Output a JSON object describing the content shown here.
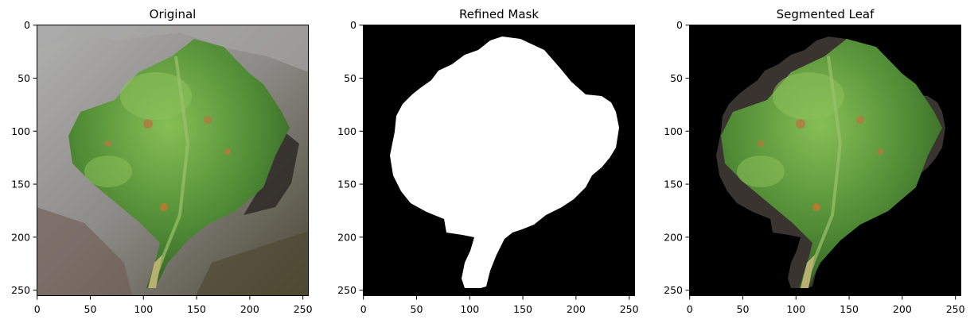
{
  "figure": {
    "panels": [
      {
        "title": "Original"
      },
      {
        "title": "Refined Mask"
      },
      {
        "title": "Segmented Leaf"
      }
    ],
    "x_ticks": [
      "0",
      "50",
      "100",
      "150",
      "200",
      "250"
    ],
    "y_ticks": [
      "0",
      "50",
      "100",
      "150",
      "200",
      "250"
    ],
    "colors": {
      "leaf": "#4f8a35",
      "leaf_light": "#7fb64d",
      "spot": "#b57840",
      "background_original": "#8f8f8f",
      "mask_foreground": "#ffffff",
      "mask_background": "#000000"
    }
  }
}
